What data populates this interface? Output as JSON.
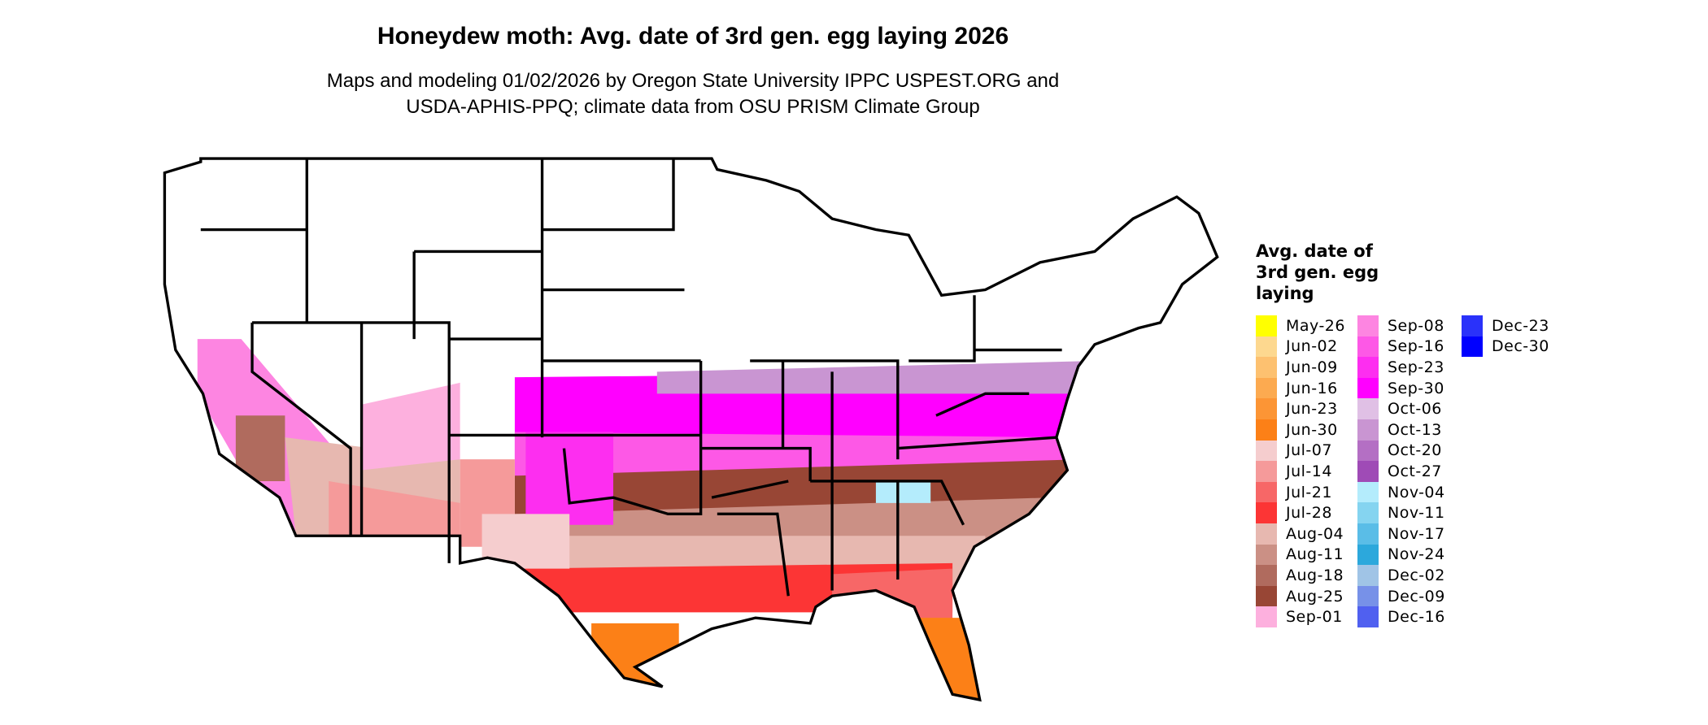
{
  "chart_data": {
    "type": "heatmap",
    "title": "Honeydew moth: Avg. date of 3rd gen. egg laying 2026",
    "subtitle_lines": [
      "Maps and modeling 01/02/2026 by Oregon State University IPPC USPEST.ORG and",
      "USDA-APHIS-PPQ; climate data from OSU PRISM Climate Group"
    ],
    "legend": {
      "title": "Avg. date of 3rd gen. egg laying",
      "title_lines": [
        "Avg. date of",
        "3rd gen. egg",
        "laying"
      ],
      "placement": "right",
      "items": [
        {
          "label": "May-26",
          "color": "#ffff00"
        },
        {
          "label": "Jun-02",
          "color": "#fdd88f"
        },
        {
          "label": "Jun-09",
          "color": "#fdc170"
        },
        {
          "label": "Jun-16",
          "color": "#fcaa50"
        },
        {
          "label": "Jun-23",
          "color": "#fc9535"
        },
        {
          "label": "Jun-30",
          "color": "#fc8017"
        },
        {
          "label": "Jul-07",
          "color": "#f5cdce"
        },
        {
          "label": "Jul-14",
          "color": "#f59a9a"
        },
        {
          "label": "Jul-21",
          "color": "#f76767"
        },
        {
          "label": "Jul-28",
          "color": "#fc3535"
        },
        {
          "label": "Aug-04",
          "color": "#e7b8b0"
        },
        {
          "label": "Aug-11",
          "color": "#cb9085"
        },
        {
          "label": "Aug-18",
          "color": "#b06b5e"
        },
        {
          "label": "Aug-25",
          "color": "#984635"
        },
        {
          "label": "Sep-01",
          "color": "#fdb0de"
        },
        {
          "label": "Sep-08",
          "color": "#fd85e1"
        },
        {
          "label": "Sep-16",
          "color": "#fd58e6"
        },
        {
          "label": "Sep-23",
          "color": "#fd2ef0"
        },
        {
          "label": "Sep-30",
          "color": "#ff00ff"
        },
        {
          "label": "Oct-06",
          "color": "#e0c0e5"
        },
        {
          "label": "Oct-13",
          "color": "#c995d2"
        },
        {
          "label": "Oct-20",
          "color": "#b46fc4"
        },
        {
          "label": "Oct-27",
          "color": "#9f4bb6"
        },
        {
          "label": "Nov-04",
          "color": "#b4ecfc"
        },
        {
          "label": "Nov-11",
          "color": "#85d4f0"
        },
        {
          "label": "Nov-17",
          "color": "#5abde7"
        },
        {
          "label": "Nov-24",
          "color": "#2ca8dc"
        },
        {
          "label": "Dec-02",
          "color": "#a0c4e6"
        },
        {
          "label": "Dec-09",
          "color": "#7791e8"
        },
        {
          "label": "Dec-16",
          "color": "#5060f0"
        },
        {
          "label": "Dec-23",
          "color": "#2a32fa"
        },
        {
          "label": "Dec-30",
          "color": "#0000ff"
        }
      ]
    },
    "region": "Contiguous United States",
    "background_color": "#ffffff",
    "no_data_color": "#ffffff"
  }
}
